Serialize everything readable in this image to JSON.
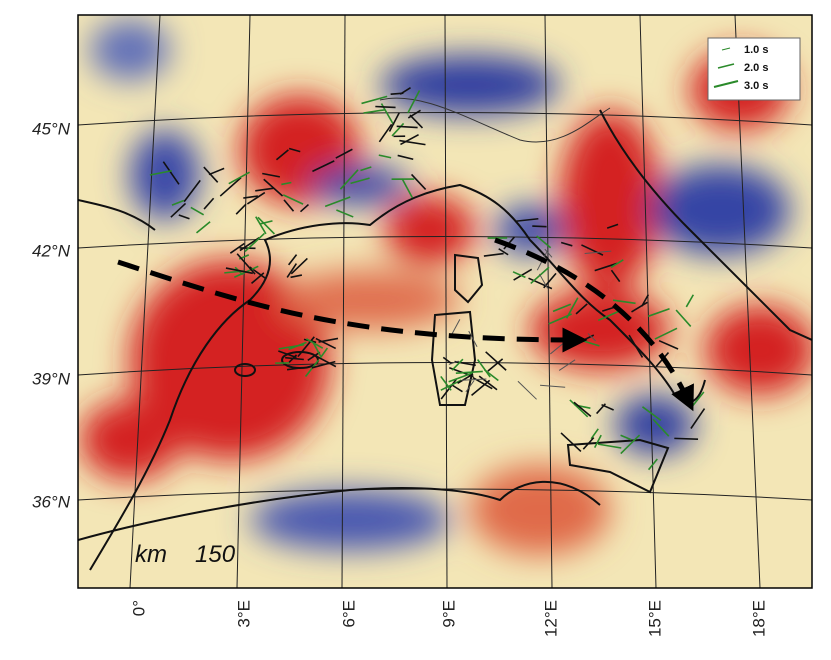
{
  "map": {
    "lat_labels": [
      "45°N",
      "42°N",
      "39°N",
      "36°N"
    ],
    "lon_labels": [
      "0°",
      "3°E",
      "6°E",
      "9°E",
      "12°E",
      "15°E",
      "18°E"
    ],
    "legend": [
      "1.0 s",
      "2.0 s",
      "3.0 s"
    ],
    "depth_unit": "km",
    "depth": 150
  }
}
